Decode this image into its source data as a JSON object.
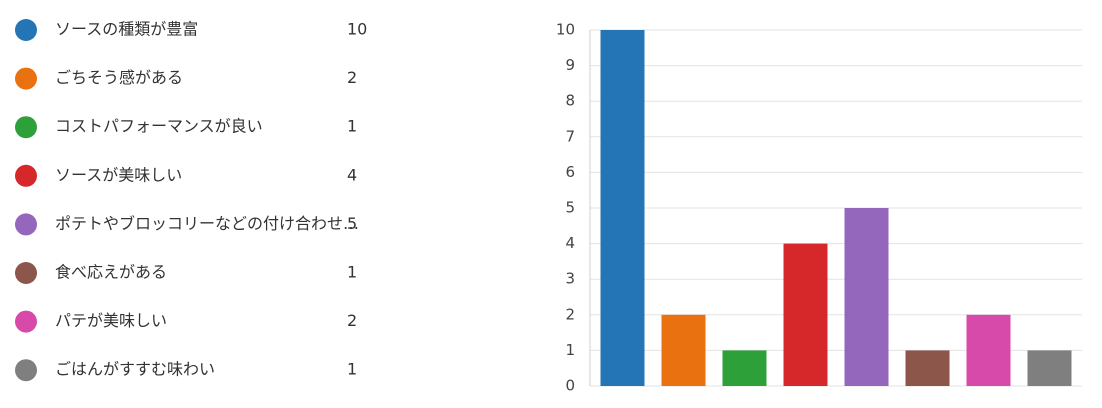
{
  "chart_data": {
    "type": "bar",
    "categories": [
      "ソースの種類が豊富",
      "ごちそう感がある",
      "コストパフォーマンスが良い",
      "ソースが美味しい",
      "ポテトやブロッコリーなどの付け合わせ…",
      "食べ応えがある",
      "パテが美味しい",
      "ごはんがすすむ味わい"
    ],
    "values": [
      10,
      2,
      1,
      4,
      5,
      1,
      2,
      1
    ],
    "colors": [
      "#2475b5",
      "#ea710f",
      "#2ea03a",
      "#d6282a",
      "#9467bd",
      "#8c564b",
      "#d84aa9",
      "#7f7f7f"
    ],
    "ylim": [
      0,
      10
    ],
    "yticks": [
      0,
      1,
      2,
      3,
      4,
      5,
      6,
      7,
      8,
      9,
      10
    ],
    "grid": true
  }
}
